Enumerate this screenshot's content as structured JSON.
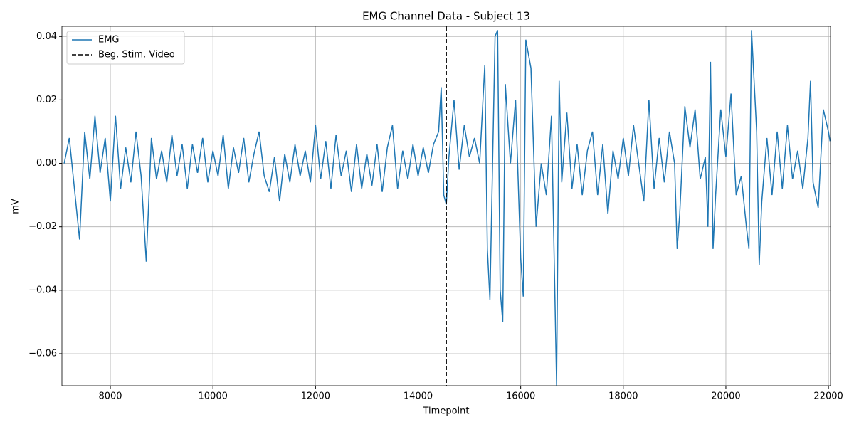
{
  "chart_data": {
    "type": "line",
    "title": "EMG Channel Data - Subject 13",
    "x_label": "Timepoint",
    "y_label": "mV",
    "x": [
      7100,
      7200,
      7300,
      7400,
      7500,
      7600,
      7700,
      7800,
      7900,
      8000,
      8100,
      8200,
      8300,
      8400,
      8500,
      8600,
      8700,
      8800,
      8900,
      9000,
      9100,
      9200,
      9300,
      9400,
      9500,
      9600,
      9700,
      9800,
      9900,
      10000,
      10100,
      10200,
      10300,
      10400,
      10500,
      10600,
      10700,
      10800,
      10900,
      11000,
      11100,
      11200,
      11300,
      11400,
      11500,
      11600,
      11700,
      11800,
      11900,
      12000,
      12100,
      12200,
      12300,
      12400,
      12500,
      12600,
      12700,
      12800,
      12900,
      13000,
      13100,
      13200,
      13300,
      13400,
      13500,
      13600,
      13700,
      13800,
      13900,
      14000,
      14100,
      14200,
      14300,
      14400,
      14450,
      14500,
      14550,
      14600,
      14700,
      14800,
      14900,
      15000,
      15100,
      15200,
      15300,
      15350,
      15400,
      15500,
      15550,
      15600,
      15650,
      15700,
      15800,
      15900,
      16000,
      16050,
      16100,
      16200,
      16300,
      16400,
      16500,
      16600,
      16700,
      16750,
      16800,
      16900,
      17000,
      17100,
      17200,
      17300,
      17400,
      17500,
      17600,
      17700,
      17800,
      17900,
      18000,
      18100,
      18200,
      18300,
      18400,
      18500,
      18600,
      18700,
      18800,
      18900,
      19000,
      19050,
      19100,
      19200,
      19300,
      19400,
      19500,
      19600,
      19650,
      19700,
      19750,
      19800,
      19900,
      20000,
      20100,
      20200,
      20300,
      20400,
      20450,
      20500,
      20600,
      20650,
      20700,
      20800,
      20900,
      21000,
      21100,
      21200,
      21300,
      21400,
      21500,
      21600,
      21650,
      21700,
      21800,
      21900,
      22000,
      22030
    ],
    "series": [
      {
        "name": "EMG",
        "color": "#1f77b4",
        "values": [
          0.0,
          0.008,
          -0.008,
          -0.024,
          0.01,
          -0.005,
          0.015,
          -0.003,
          0.008,
          -0.012,
          0.015,
          -0.008,
          0.005,
          -0.006,
          0.01,
          -0.004,
          -0.031,
          0.008,
          -0.005,
          0.004,
          -0.006,
          0.009,
          -0.004,
          0.006,
          -0.008,
          0.006,
          -0.003,
          0.008,
          -0.006,
          0.004,
          -0.004,
          0.009,
          -0.008,
          0.005,
          -0.003,
          0.008,
          -0.006,
          0.003,
          0.01,
          -0.004,
          -0.009,
          0.002,
          -0.012,
          0.003,
          -0.006,
          0.006,
          -0.004,
          0.004,
          -0.006,
          0.012,
          -0.005,
          0.007,
          -0.008,
          0.009,
          -0.004,
          0.004,
          -0.009,
          0.006,
          -0.008,
          0.003,
          -0.007,
          0.006,
          -0.009,
          0.005,
          0.012,
          -0.008,
          0.004,
          -0.005,
          0.006,
          -0.004,
          0.005,
          -0.003,
          0.006,
          0.01,
          0.024,
          -0.01,
          -0.013,
          0.002,
          0.02,
          -0.002,
          0.012,
          0.002,
          0.008,
          0.0,
          0.031,
          -0.027,
          -0.043,
          0.04,
          0.042,
          -0.04,
          -0.05,
          0.025,
          0.0,
          0.02,
          -0.03,
          -0.042,
          0.039,
          0.03,
          -0.02,
          0.0,
          -0.01,
          0.015,
          -0.07,
          0.026,
          -0.006,
          0.016,
          -0.008,
          0.006,
          -0.01,
          0.004,
          0.01,
          -0.01,
          0.006,
          -0.016,
          0.004,
          -0.005,
          0.008,
          -0.004,
          0.012,
          0.0,
          -0.012,
          0.02,
          -0.008,
          0.008,
          -0.006,
          0.01,
          0.0,
          -0.027,
          -0.016,
          0.018,
          0.005,
          0.017,
          -0.005,
          0.002,
          -0.02,
          0.032,
          -0.027,
          -0.01,
          0.017,
          0.002,
          0.022,
          -0.01,
          -0.004,
          -0.02,
          -0.027,
          0.042,
          0.01,
          -0.032,
          -0.012,
          0.008,
          -0.01,
          0.01,
          -0.008,
          0.012,
          -0.005,
          0.004,
          -0.008,
          0.008,
          0.026,
          -0.006,
          -0.014,
          0.017,
          0.01,
          0.007
        ]
      }
    ],
    "vline": {
      "name": "Beg. Stim. Video",
      "x": 14550,
      "color": "#000000"
    },
    "xlim": [
      7056,
      22040
    ],
    "ylim": [
      -0.0701,
      0.0432
    ],
    "xticks": [
      8000,
      10000,
      12000,
      14000,
      16000,
      18000,
      20000,
      22000
    ],
    "yticks": [
      {
        "value": -0.06,
        "label": "−0.06"
      },
      {
        "value": -0.04,
        "label": "−0.04"
      },
      {
        "value": -0.02,
        "label": "−0.02"
      },
      {
        "value": 0,
        "label": "0.00"
      },
      0.02,
      0.04
    ],
    "grid": true,
    "legend": "upper left"
  }
}
